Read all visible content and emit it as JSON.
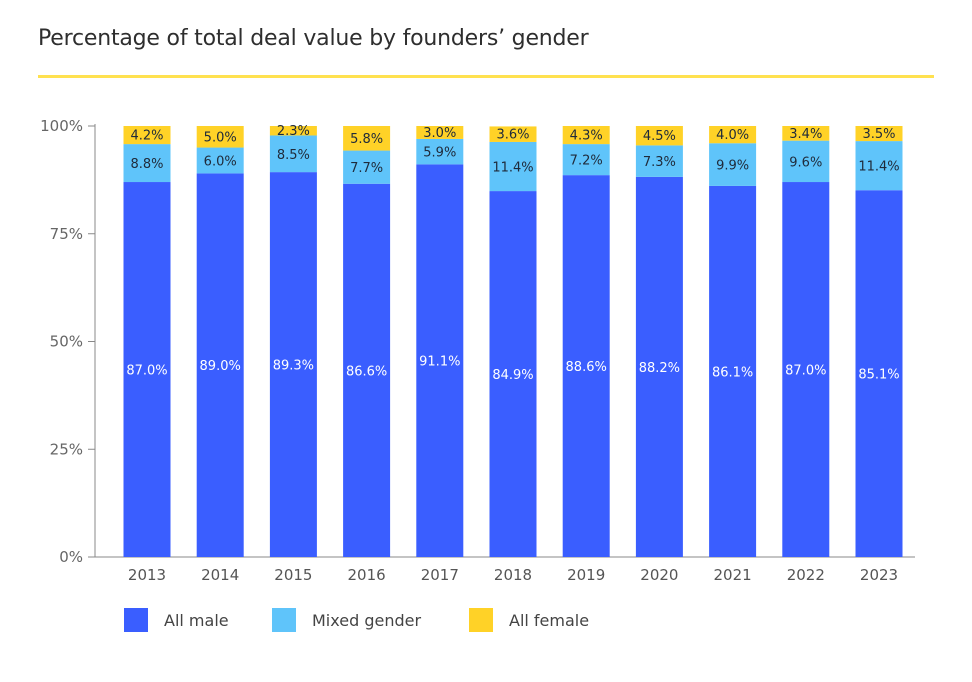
{
  "chart_data": {
    "type": "bar",
    "stacked": true,
    "title": "Percentage of total deal value by founders’ gender",
    "xlabel": "",
    "ylabel": "",
    "ylim": [
      0,
      100
    ],
    "yticks": [
      0,
      25,
      50,
      75,
      100
    ],
    "ytick_labels": [
      "0%",
      "25%",
      "50%",
      "75%",
      "100%"
    ],
    "categories": [
      "2013",
      "2014",
      "2015",
      "2016",
      "2017",
      "2018",
      "2019",
      "2020",
      "2021",
      "2022",
      "2023"
    ],
    "series": [
      {
        "name": "All male",
        "color": "#3a5eff",
        "values": [
          87.0,
          89.0,
          89.3,
          86.6,
          91.1,
          84.9,
          88.6,
          88.2,
          86.1,
          87.0,
          85.1
        ],
        "labels": [
          "87.0%",
          "89.0%",
          "89.3%",
          "86.6%",
          "91.1%",
          "84.9%",
          "88.6%",
          "88.2%",
          "86.1%",
          "87.0%",
          "85.1%"
        ]
      },
      {
        "name": "Mixed gender",
        "color": "#5fc4fa",
        "values": [
          8.8,
          6.0,
          8.5,
          7.7,
          5.9,
          11.4,
          7.2,
          7.3,
          9.9,
          9.6,
          11.4
        ],
        "labels": [
          "8.8%",
          "6.0%",
          "8.5%",
          "7.7%",
          "5.9%",
          "11.4%",
          "7.2%",
          "7.3%",
          "9.9%",
          "9.6%",
          "11.4%"
        ]
      },
      {
        "name": "All female",
        "color": "#ffd227",
        "values": [
          4.2,
          5.0,
          2.3,
          5.8,
          3.0,
          3.6,
          4.3,
          4.5,
          4.0,
          3.4,
          3.5
        ],
        "labels": [
          "4.2%",
          "5.0%",
          "2.3%",
          "5.8%",
          "3.0%",
          "3.6%",
          "4.3%",
          "4.5%",
          "4.0%",
          "3.4%",
          "3.5%"
        ]
      }
    ],
    "grid": false,
    "legend_position": "bottom-left"
  }
}
